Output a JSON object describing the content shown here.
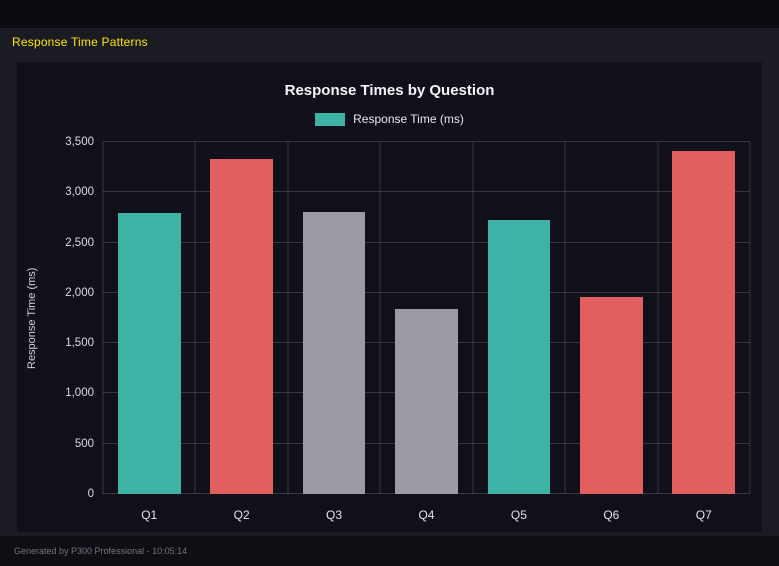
{
  "page": {
    "heading": "Response Time Patterns",
    "footer": "Generated by P300 Professional - 10:05:14"
  },
  "colors": {
    "heading_yellow": "#ffe600",
    "teal": "#3db3a6",
    "red": "#e25f5f",
    "gray": "#9b9ba3",
    "page_bg": "#1b1b24",
    "panel_bg": "#10101a"
  },
  "chart_data": {
    "type": "bar",
    "title": "Response Times by Question",
    "legend_label": "Response Time (ms)",
    "legend_color": "#3db3a6",
    "legend_position": "top",
    "categories": [
      "Q1",
      "Q2",
      "Q3",
      "Q4",
      "Q5",
      "Q6",
      "Q7"
    ],
    "values": [
      2790,
      3330,
      2800,
      1840,
      2725,
      1960,
      3410
    ],
    "bar_colors": [
      "#3db3a6",
      "#e25f5f",
      "#9b9ba3",
      "#9b9ba3",
      "#3db3a6",
      "#e25f5f",
      "#e25f5f"
    ],
    "xlabel": "",
    "ylabel": "Response Time (ms)",
    "ylim": [
      0,
      3500
    ],
    "yticks": [
      0,
      500,
      1000,
      1500,
      2000,
      2500,
      3000,
      3500
    ],
    "grid": true
  }
}
